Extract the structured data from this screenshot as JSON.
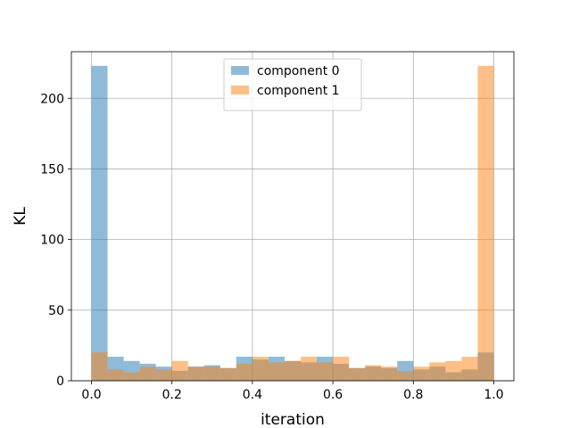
{
  "chart_data": {
    "type": "bar",
    "title": "",
    "xlabel": "iteration",
    "ylabel": "KL",
    "xlim": [
      -0.05,
      1.05
    ],
    "ylim": [
      0,
      233
    ],
    "grid": true,
    "legend_position": "top-center",
    "x_ticks": [
      0.0,
      0.2,
      0.4,
      0.6,
      0.8,
      1.0
    ],
    "x_tick_labels": [
      "0.0",
      "0.2",
      "0.4",
      "0.6",
      "0.8",
      "1.0"
    ],
    "y_ticks": [
      0,
      50,
      100,
      150,
      200
    ],
    "y_tick_labels": [
      "0",
      "50",
      "100",
      "150",
      "200"
    ],
    "bin_edges": [
      0.0,
      0.04,
      0.08,
      0.12,
      0.16,
      0.2,
      0.24,
      0.28,
      0.32,
      0.36,
      0.4,
      0.44,
      0.48,
      0.52,
      0.56,
      0.6,
      0.64,
      0.68,
      0.72,
      0.76,
      0.8,
      0.84,
      0.88,
      0.92,
      0.96,
      1.0
    ],
    "series": [
      {
        "name": "component 0",
        "color": "#1f77b4",
        "values": [
          223,
          17,
          14,
          12,
          10,
          7,
          10,
          11,
          9,
          17,
          15,
          17,
          14,
          13,
          17,
          12,
          9,
          10,
          9,
          14,
          8,
          10,
          6,
          8,
          20
        ]
      },
      {
        "name": "component 1",
        "color": "#ff7f0e",
        "values": [
          20,
          8,
          6,
          10,
          8,
          14,
          10,
          10,
          9,
          12,
          17,
          13,
          14,
          17,
          13,
          17,
          9,
          11,
          10,
          7,
          10,
          13,
          14,
          17,
          223
        ]
      }
    ]
  }
}
